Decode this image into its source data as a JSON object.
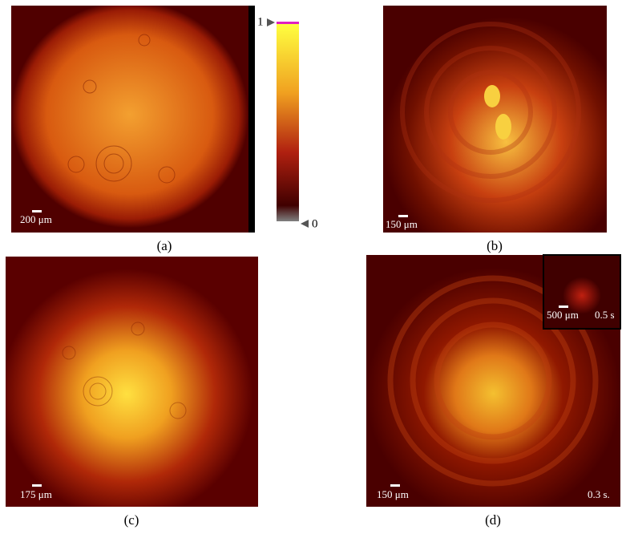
{
  "panels": [
    {
      "label": "(a)",
      "scale_bar": "200 μm"
    },
    {
      "label": "(b)",
      "scale_bar": "150 μm"
    },
    {
      "label": "(c)",
      "scale_bar": "175 μm"
    },
    {
      "label": "(d)",
      "scale_bar": "150 μm",
      "time": "0.3 s.",
      "inset": {
        "scale_bar": "500 μm",
        "time": "0.5 s"
      }
    }
  ],
  "colorbar": {
    "max": "1",
    "min": "0"
  }
}
